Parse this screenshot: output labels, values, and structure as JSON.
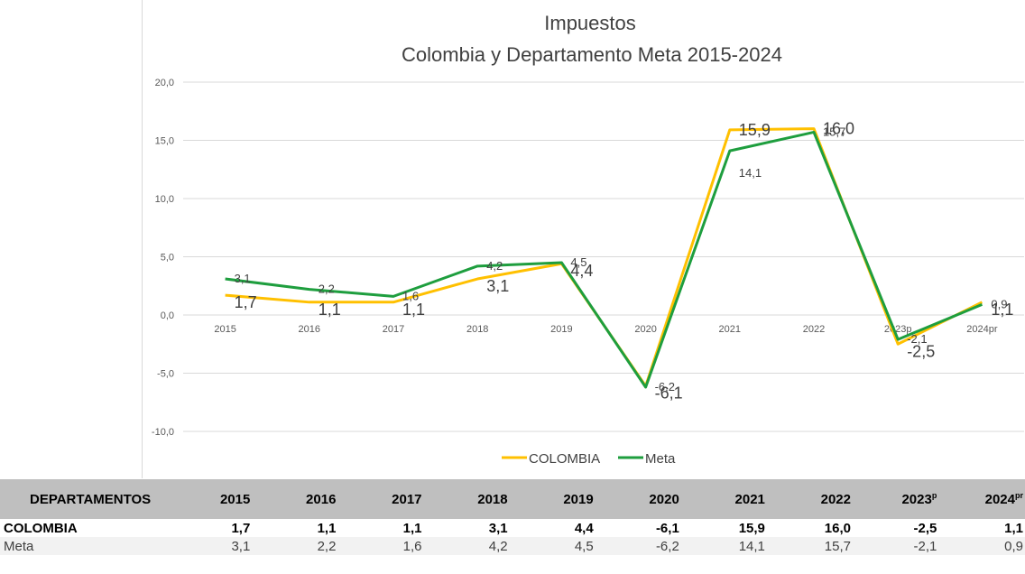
{
  "chart_data": {
    "type": "line",
    "title": "Impuestos",
    "subtitle": "Colombia y Departamento Meta 2015-2024",
    "categories": [
      "2015",
      "2016",
      "2017",
      "2018",
      "2019",
      "2020",
      "2021",
      "2022",
      "2023p",
      "2024pr"
    ],
    "ylim": [
      -10,
      20
    ],
    "yticks": [
      "20,0",
      "15,0",
      "10,0",
      "5,0",
      "0,0",
      "-5,0",
      "-10,0"
    ],
    "ytick_values": [
      20,
      15,
      10,
      5,
      0,
      -5,
      -10
    ],
    "grid": true,
    "legend_position": "bottom",
    "series": [
      {
        "name": "COLOMBIA",
        "color": "#FFC000",
        "values": [
          1.7,
          1.1,
          1.1,
          3.1,
          4.4,
          -6.1,
          15.9,
          16.0,
          -2.5,
          1.1
        ],
        "labels": [
          "1,7",
          "1,1",
          "1,1",
          "3,1",
          "4,4",
          "-6,1",
          "15,9",
          "16,0",
          "-2,5",
          "1,1"
        ]
      },
      {
        "name": "Meta",
        "color": "#1E9E3E",
        "values": [
          3.1,
          2.2,
          1.6,
          4.2,
          4.5,
          -6.2,
          14.1,
          15.7,
          -2.1,
          0.9
        ],
        "labels": [
          "3,1",
          "2,2",
          "1,6",
          "4,2",
          "4,5",
          "-6,2",
          "14,1",
          "15,7",
          "-2,1",
          "0,9"
        ]
      }
    ]
  },
  "table": {
    "header_label": "DEPARTAMENTOS",
    "years": [
      {
        "year": "2015",
        "sup": ""
      },
      {
        "year": "2016",
        "sup": ""
      },
      {
        "year": "2017",
        "sup": ""
      },
      {
        "year": "2018",
        "sup": ""
      },
      {
        "year": "2019",
        "sup": ""
      },
      {
        "year": "2020",
        "sup": ""
      },
      {
        "year": "2021",
        "sup": ""
      },
      {
        "year": "2022",
        "sup": ""
      },
      {
        "year": "2023",
        "sup": "p"
      },
      {
        "year": "2024",
        "sup": "pr"
      }
    ],
    "rows": [
      {
        "name": "COLOMBIA",
        "values": [
          "1,7",
          "1,1",
          "1,1",
          "3,1",
          "4,4",
          "-6,1",
          "15,9",
          "16,0",
          "-2,5",
          "1,1"
        ]
      },
      {
        "name": "Meta",
        "values": [
          "3,1",
          "2,2",
          "1,6",
          "4,2",
          "4,5",
          "-6,2",
          "14,1",
          "15,7",
          "-2,1",
          "0,9"
        ]
      }
    ]
  }
}
